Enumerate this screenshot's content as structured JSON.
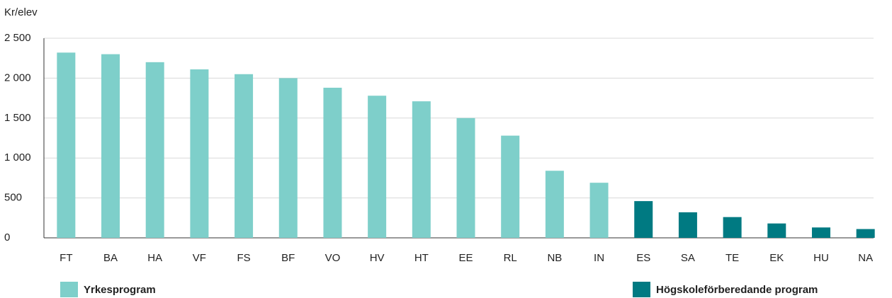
{
  "chart_data": {
    "type": "bar",
    "y_axis_label": "Kr/elev",
    "categories": [
      "FT",
      "BA",
      "HA",
      "VF",
      "FS",
      "BF",
      "VO",
      "HV",
      "HT",
      "EE",
      "RL",
      "NB",
      "IN",
      "ES",
      "SA",
      "TE",
      "EK",
      "HU",
      "NA"
    ],
    "series": [
      {
        "name": "Yrkesprogram",
        "color": "#7ecfca",
        "values": [
          2320,
          2300,
          2200,
          2110,
          2050,
          2000,
          1880,
          1780,
          1710,
          1500,
          1280,
          840,
          690,
          null,
          null,
          null,
          null,
          null,
          null
        ]
      },
      {
        "name": "Högskoleförberedande program",
        "color": "#007a82",
        "values": [
          null,
          null,
          null,
          null,
          null,
          null,
          null,
          null,
          null,
          null,
          null,
          null,
          null,
          460,
          320,
          260,
          180,
          130,
          110
        ]
      }
    ],
    "ylim": [
      0,
      2500
    ],
    "yticks": [
      0,
      500,
      {
        "value": 1000,
        "label": "1 000"
      },
      {
        "value": 1500,
        "label": "1 500"
      },
      {
        "value": 2000,
        "label": "2 000"
      },
      {
        "value": 2500,
        "label": "2 500"
      }
    ],
    "grid": true
  }
}
